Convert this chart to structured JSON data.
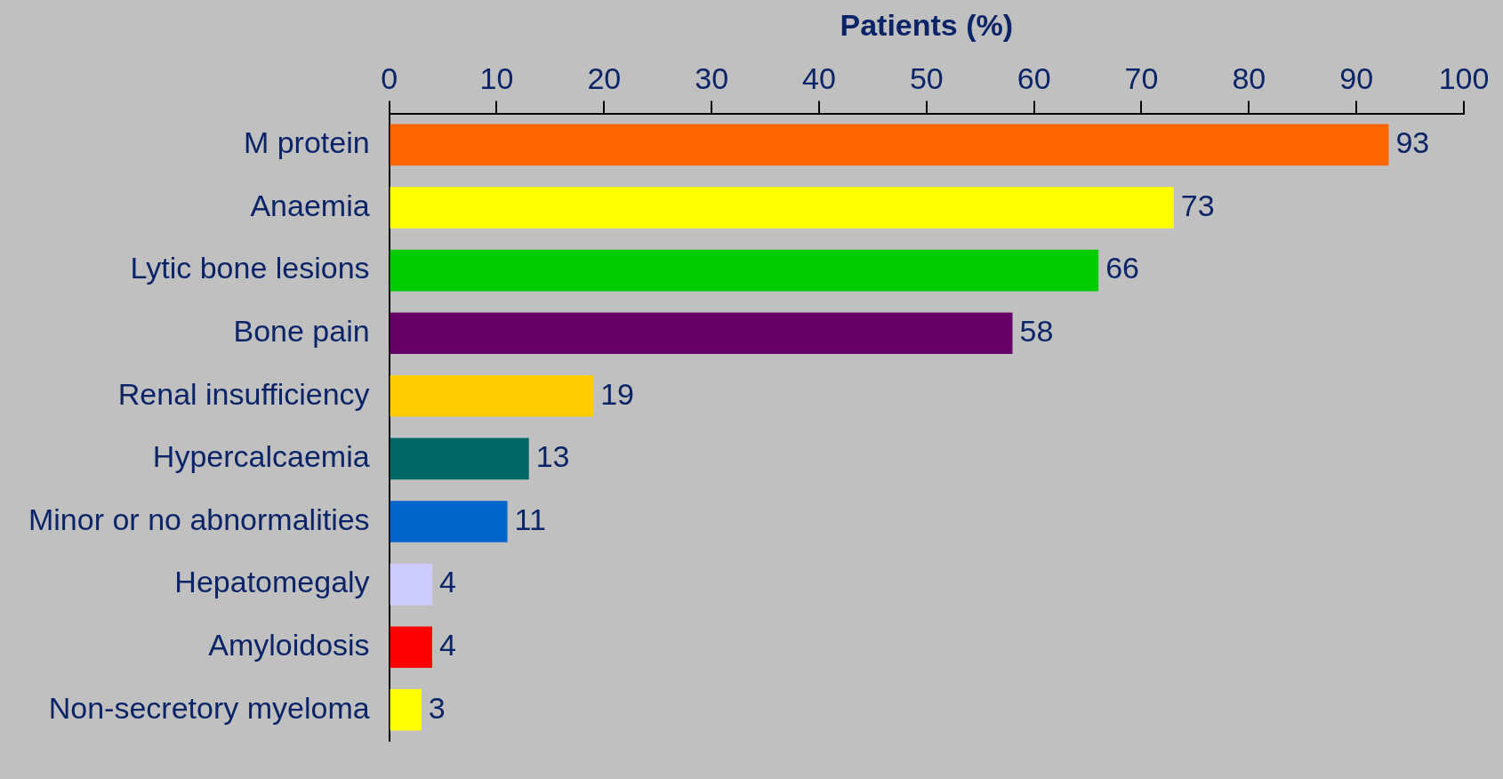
{
  "chart_data": {
    "type": "bar",
    "orientation": "horizontal",
    "xlabel": "Patients (%)",
    "categories": [
      "M protein",
      "Anaemia",
      "Lytic bone lesions",
      "Bone pain",
      "Renal insufficiency",
      "Hypercalcaemia",
      "Minor or no abnormalities",
      "Hepatomegaly",
      "Amyloidosis",
      "Non-secretory myeloma"
    ],
    "values": [
      93,
      73,
      66,
      58,
      19,
      13,
      11,
      4,
      4,
      3
    ],
    "colors": [
      "#ff6600",
      "#ffff00",
      "#00cc00",
      "#660066",
      "#ffcc00",
      "#006666",
      "#0066cc",
      "#ccccff",
      "#ff0000",
      "#ffff00"
    ],
    "xlim": [
      0,
      100
    ],
    "xticks": [
      0,
      10,
      20,
      30,
      40,
      50,
      60,
      70,
      80,
      90,
      100
    ],
    "data_labels": true,
    "grid": false,
    "legend": false
  }
}
